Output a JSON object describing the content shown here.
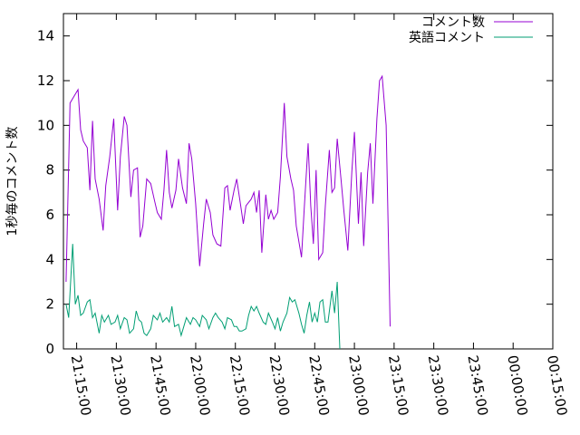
{
  "chart_data": {
    "type": "line",
    "title": "",
    "xlabel": "",
    "ylabel": "1秒毎のコメント数",
    "ylim": [
      0,
      15
    ],
    "xlim": [
      "21:10:00",
      "00:15:00"
    ],
    "x_ticks": [
      "21:15:00",
      "21:30:00",
      "21:45:00",
      "22:00:00",
      "22:15:00",
      "22:30:00",
      "22:45:00",
      "23:00:00",
      "23:15:00",
      "23:30:00",
      "23:45:00",
      "00:00:00",
      "00:15:00"
    ],
    "y_ticks": [
      "0",
      "2",
      "4",
      "6",
      "8",
      "10",
      "12",
      "14"
    ],
    "legend_position": "top-right",
    "grid": false,
    "series": [
      {
        "name": "コメント数",
        "color": "#9400d3",
        "points": [
          [
            "21:11:00",
            3.0
          ],
          [
            "21:12:30",
            11.0
          ],
          [
            "21:14:00",
            11.3
          ],
          [
            "21:15:30",
            11.6
          ],
          [
            "21:16:30",
            9.8
          ],
          [
            "21:17:30",
            9.3
          ],
          [
            "21:19:00",
            9.0
          ],
          [
            "21:20:00",
            7.1
          ],
          [
            "21:21:00",
            10.2
          ],
          [
            "21:22:00",
            7.6
          ],
          [
            "21:23:30",
            6.7
          ],
          [
            "21:25:00",
            5.3
          ],
          [
            "21:26:00",
            7.3
          ],
          [
            "21:27:30",
            8.6
          ],
          [
            "21:29:00",
            10.3
          ],
          [
            "21:30:30",
            6.2
          ],
          [
            "21:31:30",
            8.6
          ],
          [
            "21:33:00",
            10.4
          ],
          [
            "21:34:00",
            10.0
          ],
          [
            "21:35:30",
            6.8
          ],
          [
            "21:36:30",
            8.0
          ],
          [
            "21:38:00",
            8.1
          ],
          [
            "21:39:00",
            5.0
          ],
          [
            "21:40:00",
            5.5
          ],
          [
            "21:41:30",
            7.6
          ],
          [
            "21:43:00",
            7.4
          ],
          [
            "21:44:30",
            6.6
          ],
          [
            "21:45:30",
            6.1
          ],
          [
            "21:47:00",
            5.8
          ],
          [
            "21:48:00",
            7.1
          ],
          [
            "21:49:00",
            8.9
          ],
          [
            "21:50:00",
            7.0
          ],
          [
            "21:51:00",
            6.3
          ],
          [
            "21:52:30",
            7.1
          ],
          [
            "21:53:30",
            8.5
          ],
          [
            "21:55:00",
            7.2
          ],
          [
            "21:56:30",
            6.5
          ],
          [
            "21:57:30",
            9.2
          ],
          [
            "21:58:30",
            8.5
          ],
          [
            "22:00:00",
            6.5
          ],
          [
            "22:01:30",
            3.7
          ],
          [
            "22:03:00",
            5.6
          ],
          [
            "22:04:00",
            6.7
          ],
          [
            "22:05:30",
            6.1
          ],
          [
            "22:06:30",
            5.1
          ],
          [
            "22:08:00",
            4.7
          ],
          [
            "22:09:30",
            4.6
          ],
          [
            "22:11:00",
            7.2
          ],
          [
            "22:12:00",
            7.3
          ],
          [
            "22:13:00",
            6.2
          ],
          [
            "22:14:30",
            7.1
          ],
          [
            "22:15:30",
            7.6
          ],
          [
            "22:17:00",
            6.4
          ],
          [
            "22:18:00",
            5.6
          ],
          [
            "22:19:00",
            6.4
          ],
          [
            "22:21:00",
            6.7
          ],
          [
            "22:22:00",
            7.0
          ],
          [
            "22:23:00",
            6.1
          ],
          [
            "22:24:00",
            7.1
          ],
          [
            "22:25:00",
            4.3
          ],
          [
            "22:26:30",
            6.9
          ],
          [
            "22:27:30",
            5.8
          ],
          [
            "22:28:30",
            6.2
          ],
          [
            "22:29:30",
            5.8
          ],
          [
            "22:31:00",
            6.1
          ],
          [
            "22:32:00",
            7.7
          ],
          [
            "22:33:30",
            11.0
          ],
          [
            "22:34:30",
            8.6
          ],
          [
            "22:36:00",
            7.6
          ],
          [
            "22:37:00",
            7.1
          ],
          [
            "22:38:00",
            5.5
          ],
          [
            "22:40:00",
            4.1
          ],
          [
            "22:41:00",
            6.2
          ],
          [
            "22:42:30",
            9.2
          ],
          [
            "22:43:30",
            6.4
          ],
          [
            "22:44:30",
            4.7
          ],
          [
            "22:45:30",
            8.0
          ],
          [
            "22:46:30",
            4.0
          ],
          [
            "22:48:00",
            4.3
          ],
          [
            "22:49:00",
            6.4
          ],
          [
            "22:50:30",
            8.9
          ],
          [
            "22:51:30",
            7.0
          ],
          [
            "22:52:30",
            7.2
          ],
          [
            "22:53:30",
            9.4
          ],
          [
            "22:55:00",
            7.5
          ],
          [
            "22:56:00",
            6.2
          ],
          [
            "22:57:30",
            4.4
          ],
          [
            "22:59:00",
            7.9
          ],
          [
            "23:00:00",
            9.7
          ],
          [
            "23:01:30",
            5.6
          ],
          [
            "23:02:30",
            7.9
          ],
          [
            "23:03:30",
            4.6
          ],
          [
            "23:05:00",
            7.9
          ],
          [
            "23:06:00",
            9.2
          ],
          [
            "23:07:00",
            6.5
          ],
          [
            "23:08:30",
            10.3
          ],
          [
            "23:09:30",
            12.0
          ],
          [
            "23:10:30",
            12.2
          ],
          [
            "23:12:00",
            10.0
          ],
          [
            "23:13:30",
            1.0
          ]
        ]
      },
      {
        "name": "英語コメント",
        "color": "#009e73",
        "points": [
          [
            "21:11:00",
            2.0
          ],
          [
            "21:12:00",
            1.4
          ],
          [
            "21:13:30",
            4.7
          ],
          [
            "21:14:30",
            2.0
          ],
          [
            "21:15:30",
            2.4
          ],
          [
            "21:16:30",
            1.5
          ],
          [
            "21:17:30",
            1.6
          ],
          [
            "21:19:00",
            2.1
          ],
          [
            "21:20:00",
            2.2
          ],
          [
            "21:21:00",
            1.4
          ],
          [
            "21:22:00",
            1.6
          ],
          [
            "21:23:30",
            0.7
          ],
          [
            "21:24:30",
            1.5
          ],
          [
            "21:25:30",
            1.2
          ],
          [
            "21:27:00",
            1.5
          ],
          [
            "21:28:00",
            1.1
          ],
          [
            "21:29:30",
            1.2
          ],
          [
            "21:30:30",
            1.5
          ],
          [
            "21:31:30",
            0.9
          ],
          [
            "21:33:00",
            1.4
          ],
          [
            "21:34:00",
            1.3
          ],
          [
            "21:35:00",
            0.7
          ],
          [
            "21:36:30",
            0.9
          ],
          [
            "21:37:30",
            1.7
          ],
          [
            "21:38:30",
            1.3
          ],
          [
            "21:39:30",
            1.2
          ],
          [
            "21:40:30",
            0.7
          ],
          [
            "21:41:30",
            0.6
          ],
          [
            "21:43:00",
            0.9
          ],
          [
            "21:44:00",
            1.5
          ],
          [
            "21:45:30",
            1.3
          ],
          [
            "21:46:30",
            1.6
          ],
          [
            "21:47:30",
            1.2
          ],
          [
            "21:49:00",
            1.4
          ],
          [
            "21:50:00",
            1.2
          ],
          [
            "21:51:00",
            1.9
          ],
          [
            "21:52:00",
            1.0
          ],
          [
            "21:53:30",
            1.1
          ],
          [
            "21:54:30",
            0.6
          ],
          [
            "21:55:30",
            1.0
          ],
          [
            "21:56:30",
            1.4
          ],
          [
            "21:58:00",
            1.1
          ],
          [
            "21:59:00",
            1.4
          ],
          [
            "22:00:00",
            1.3
          ],
          [
            "22:01:30",
            1.0
          ],
          [
            "22:02:30",
            1.5
          ],
          [
            "22:04:00",
            1.3
          ],
          [
            "22:05:00",
            0.9
          ],
          [
            "22:06:30",
            1.4
          ],
          [
            "22:07:30",
            1.6
          ],
          [
            "22:08:30",
            1.4
          ],
          [
            "22:10:00",
            1.2
          ],
          [
            "22:11:00",
            0.9
          ],
          [
            "22:12:00",
            1.4
          ],
          [
            "22:13:30",
            1.3
          ],
          [
            "22:14:30",
            1.0
          ],
          [
            "22:15:30",
            1.0
          ],
          [
            "22:16:30",
            0.8
          ],
          [
            "22:17:30",
            0.8
          ],
          [
            "22:19:00",
            0.9
          ],
          [
            "22:20:00",
            1.5
          ],
          [
            "22:21:00",
            1.9
          ],
          [
            "22:22:00",
            1.7
          ],
          [
            "22:23:00",
            1.9
          ],
          [
            "22:24:00",
            1.6
          ],
          [
            "22:25:30",
            1.2
          ],
          [
            "22:26:30",
            1.1
          ],
          [
            "22:27:30",
            1.6
          ],
          [
            "22:29:00",
            1.2
          ],
          [
            "22:30:00",
            0.9
          ],
          [
            "22:31:00",
            1.4
          ],
          [
            "22:32:00",
            0.8
          ],
          [
            "22:33:00",
            1.2
          ],
          [
            "22:34:30",
            1.6
          ],
          [
            "22:35:30",
            2.3
          ],
          [
            "22:36:30",
            2.1
          ],
          [
            "22:37:30",
            2.2
          ],
          [
            "22:39:00",
            1.6
          ],
          [
            "22:40:00",
            1.1
          ],
          [
            "22:41:00",
            0.7
          ],
          [
            "22:42:00",
            1.5
          ],
          [
            "22:43:00",
            2.1
          ],
          [
            "22:44:00",
            1.2
          ],
          [
            "22:45:00",
            1.6
          ],
          [
            "22:46:00",
            1.2
          ],
          [
            "22:47:00",
            2.1
          ],
          [
            "22:48:00",
            2.2
          ],
          [
            "22:49:00",
            1.2
          ],
          [
            "22:50:00",
            1.2
          ],
          [
            "22:51:30",
            2.6
          ],
          [
            "22:52:30",
            1.6
          ],
          [
            "22:53:30",
            3.0
          ],
          [
            "22:54:30",
            0.0
          ]
        ]
      }
    ]
  }
}
